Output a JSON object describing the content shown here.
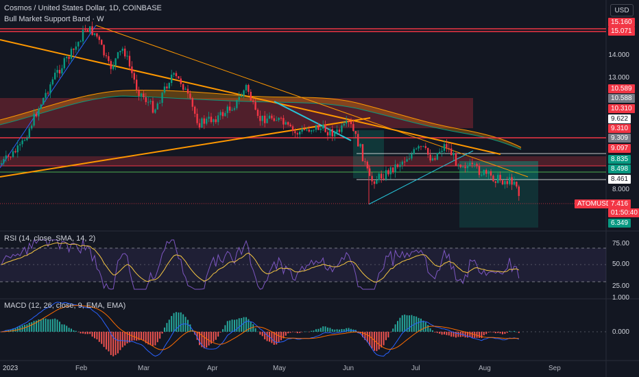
{
  "header": {
    "title": "Cosmos / United States Dollar, 1D, COINBASE",
    "indicator": "Bull Market Support Band · W",
    "currency_button": "USD"
  },
  "rsi_legend": "RSI (14, close, SMA, 14, 2)",
  "macd_legend": "MACD (12, 26, close, 9, EMA, EMA)",
  "price_axis": {
    "ticks": [
      "14.000",
      "13.000",
      "8.000"
    ],
    "tags": [
      {
        "label": "15.160",
        "color": "#f23645"
      },
      {
        "label": "15.071",
        "color": "#f23645"
      },
      {
        "label": "10.589",
        "color": "#f23645"
      },
      {
        "label": "10.588",
        "color": "#787b86"
      },
      {
        "label": "10.310",
        "color": "#f23645"
      },
      {
        "label": "9.622",
        "color": "#ffffff"
      },
      {
        "label": "9.310",
        "color": "#f23645"
      },
      {
        "label": "9.309",
        "color": "#787b86"
      },
      {
        "label": "9.097",
        "color": "#f23645"
      },
      {
        "label": "8.835",
        "color": "#089981"
      },
      {
        "label": "8.498",
        "color": "#089981"
      },
      {
        "label": "8.461",
        "color": "#ffffff"
      },
      {
        "label": "7.416",
        "color": "#f23645"
      },
      {
        "label": "01:50:40",
        "color": "#f23645"
      },
      {
        "label": "6.349",
        "color": "#089981"
      }
    ],
    "symbol_tag": "ATOMUSD"
  },
  "rsi_axis": [
    "75.00",
    "50.00",
    "25.00"
  ],
  "macd_axis": [
    "1.000",
    "0.000"
  ],
  "time_axis": [
    "2023",
    "Feb",
    "Mar",
    "Apr",
    "May",
    "Jun",
    "Jul",
    "Aug",
    "Sep"
  ],
  "colors": {
    "up": "#089981",
    "down": "#f23645",
    "orange": "#ff9800",
    "rsi": "#7e57c2",
    "macd": "#2962ff"
  }
}
